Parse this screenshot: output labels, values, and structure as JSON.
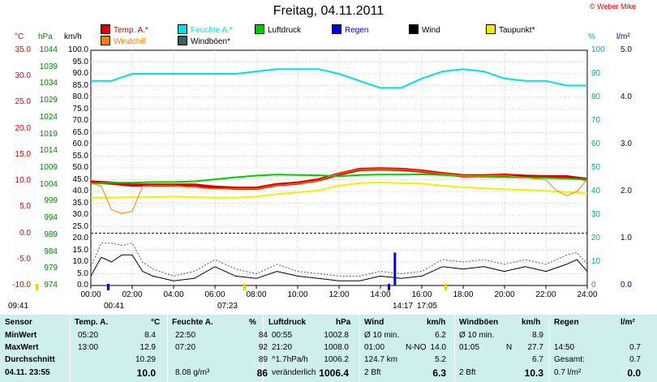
{
  "title": "Freitag, 04.11.2011",
  "credit": "© Weber Mike",
  "colors": {
    "temp": "#e00000",
    "feuchte": "#00e0e0",
    "luftdruck": "#00cc00",
    "regen": "#0000e0",
    "wind": "#000000",
    "taupunkt": "#f0f000",
    "windchill": "#ff8000",
    "windboen": "#406060",
    "table_bg": "#cfeeee"
  },
  "legend": [
    {
      "label": "Temp. A.*",
      "color": "#e00000"
    },
    {
      "label": "Feuchte A.*",
      "color": "#00e0e0"
    },
    {
      "label": "Luftdruck",
      "color": "#00cc00"
    },
    {
      "label": "Regen",
      "color": "#0000e0"
    },
    {
      "label": "Wind",
      "color": "#000000"
    },
    {
      "label": "Taupunkt*",
      "color": "#f0f000"
    },
    {
      "label": "Windchill",
      "color": "#ff8000"
    },
    {
      "label": "Windböen*",
      "color": "#406060"
    }
  ],
  "axis_titles": {
    "temp": "°C",
    "pressure": "hPa",
    "wind": "km/h",
    "humidity": "%",
    "rain": "l/m²"
  },
  "events": [
    {
      "label": "09:41",
      "type": "sunrise"
    },
    {
      "label": "00:41",
      "type": "moon"
    },
    {
      "label": "07:23",
      "type": "sunrise"
    },
    {
      "label": "14:17",
      "type": "moon"
    },
    {
      "label": "17:05",
      "type": "sunset"
    }
  ],
  "chart_data": {
    "type": "line",
    "x_ticks": [
      "00:00",
      "02:00",
      "04:00",
      "06:00",
      "08:00",
      "10:00",
      "12:00",
      "14:00",
      "16:00",
      "18:00",
      "20:00",
      "22:00",
      "24:00"
    ],
    "xlim": [
      0,
      24
    ],
    "axes": {
      "temp": {
        "unit": "°C",
        "ylim": [
          -10,
          35
        ],
        "ticks": [
          "35.0",
          "30.0",
          "25.0",
          "20.0",
          "15.0",
          "10.0",
          "5.0",
          "0.0",
          "-5.0",
          "-10.0"
        ]
      },
      "pressure": {
        "unit": "hPa",
        "ylim": [
          974,
          1044
        ],
        "ticks": [
          "1044",
          "1039",
          "1034",
          "1029",
          "1024",
          "1019",
          "1014",
          "1009",
          "1004",
          "999",
          "994",
          "989",
          "984",
          "979",
          "974"
        ]
      },
      "wind": {
        "unit": "km/h",
        "ylim": [
          0,
          100
        ],
        "ticks": [
          "100.0",
          "95.0",
          "90.0",
          "85.0",
          "80.0",
          "75.0",
          "70.0",
          "65.0",
          "60.0",
          "55.0",
          "50.0",
          "45.0",
          "40.0",
          "35.0",
          "30.0",
          "25.0",
          "20.0",
          "15.0",
          "10.0",
          "5.0",
          "0.0"
        ]
      },
      "humidity": {
        "unit": "%",
        "ylim": [
          0,
          100
        ],
        "ticks": [
          "100",
          "90",
          "80",
          "70",
          "60",
          "50",
          "40",
          "30",
          "20",
          "10",
          "0"
        ]
      },
      "rain": {
        "unit": "l/m²",
        "ylim": [
          0,
          5
        ],
        "ticks": [
          "5.0",
          "4.0",
          "3.0",
          "2.0",
          "1.0",
          "0.0"
        ]
      }
    },
    "series": [
      {
        "name": "Temp. A.*",
        "axis": "temp",
        "color": "#e00000",
        "width": 4,
        "x": [
          0,
          1,
          2,
          3,
          4,
          5,
          6,
          7,
          8,
          9,
          10,
          11,
          12,
          13,
          14,
          15,
          16,
          17,
          18,
          19,
          20,
          21,
          22,
          23,
          24
        ],
        "y": [
          9.8,
          9.6,
          9.2,
          9.2,
          9.2,
          9.2,
          8.8,
          8.6,
          8.6,
          9.3,
          9.6,
          10.2,
          11.3,
          12.2,
          12.3,
          12.2,
          11.9,
          11.4,
          11.0,
          11.0,
          11.1,
          10.9,
          10.8,
          10.8,
          10.3
        ]
      },
      {
        "name": "Feuchte A.*",
        "axis": "humidity",
        "color": "#00e0e0",
        "width": 2,
        "x": [
          0,
          1,
          2,
          3,
          4,
          5,
          6,
          7,
          8,
          9,
          10,
          11,
          12,
          13,
          14,
          15,
          16,
          17,
          18,
          19,
          20,
          21,
          22,
          23,
          24
        ],
        "y": [
          87,
          87,
          90,
          90,
          90,
          90,
          90,
          90,
          91,
          92,
          92,
          92,
          90,
          87,
          84,
          84,
          88,
          91,
          92,
          91,
          88,
          87,
          87,
          85,
          85
        ]
      },
      {
        "name": "Luftdruck",
        "axis": "pressure",
        "color": "#00cc00",
        "width": 2,
        "x": [
          0,
          1,
          2,
          3,
          4,
          5,
          6,
          7,
          8,
          9,
          10,
          11,
          12,
          13,
          14,
          15,
          16,
          17,
          18,
          19,
          20,
          21,
          22,
          23,
          24
        ],
        "y": [
          1004.3,
          1004.6,
          1004.6,
          1004.8,
          1004.8,
          1005.0,
          1005.6,
          1006.2,
          1006.7,
          1007.0,
          1006.9,
          1006.8,
          1006.5,
          1006.9,
          1007.0,
          1007.0,
          1007.1,
          1006.9,
          1006.6,
          1006.4,
          1006.3,
          1006.1,
          1006.0,
          1005.8,
          1005.5
        ]
      },
      {
        "name": "Taupunkt*",
        "axis": "temp",
        "color": "#f0f000",
        "width": 2,
        "x": [
          0,
          1,
          2,
          3,
          4,
          5,
          6,
          7,
          8,
          9,
          10,
          11,
          12,
          13,
          14,
          15,
          16,
          17,
          18,
          19,
          20,
          21,
          22,
          23,
          24
        ],
        "y": [
          6.8,
          6.8,
          6.9,
          6.9,
          7.0,
          6.9,
          6.8,
          6.8,
          7.0,
          7.5,
          7.8,
          8.2,
          9.1,
          9.6,
          9.7,
          9.6,
          9.5,
          9.1,
          8.8,
          8.6,
          8.4,
          8.3,
          8.1,
          7.9,
          7.6
        ]
      },
      {
        "name": "Windchill",
        "axis": "temp",
        "color": "#ff8000",
        "width": 1,
        "x": [
          0,
          0.5,
          1,
          1.5,
          2,
          2.5,
          3,
          4,
          5,
          6,
          7,
          8,
          9,
          10,
          11,
          12,
          13,
          14,
          15,
          16,
          17,
          18,
          19,
          20,
          21,
          22,
          22.5,
          23,
          23.5,
          24
        ],
        "y": [
          9.6,
          9.0,
          4.5,
          3.8,
          4.2,
          9.0,
          9.1,
          9.1,
          8.7,
          8.5,
          8.5,
          8.5,
          9.2,
          9.5,
          10.1,
          11.4,
          12.2,
          12.3,
          12.2,
          11.9,
          11.4,
          11.0,
          11.0,
          11.1,
          10.6,
          10.2,
          8.2,
          7.2,
          8.0,
          10.3
        ]
      },
      {
        "name": "Wind",
        "axis": "wind",
        "color": "#000000",
        "width": 1,
        "x": [
          0,
          0.5,
          1,
          1.5,
          2,
          2.5,
          3,
          4,
          5,
          6,
          7,
          8,
          9,
          10,
          11,
          12,
          13,
          14,
          15,
          16,
          17,
          18,
          19,
          20,
          21,
          22,
          23,
          23.5,
          24
        ],
        "y": [
          4,
          12,
          10,
          13,
          13,
          6,
          4,
          2,
          3,
          8,
          4,
          3,
          6,
          4,
          3,
          2,
          2,
          4,
          3,
          4,
          8,
          7,
          8,
          6,
          8,
          6,
          9,
          11,
          6
        ]
      },
      {
        "name": "Windböen*",
        "axis": "wind",
        "color": "#406060",
        "width": 1,
        "dash": true,
        "x": [
          0,
          0.5,
          1,
          1.5,
          2,
          2.5,
          3,
          4,
          5,
          6,
          7,
          8,
          9,
          10,
          11,
          12,
          13,
          14,
          15,
          16,
          17,
          18,
          19,
          20,
          21,
          22,
          23,
          23.5,
          24
        ],
        "y": [
          8,
          18,
          18,
          17,
          18,
          10,
          7,
          4,
          6,
          11,
          7,
          5,
          9,
          6,
          5,
          4,
          4,
          6,
          5,
          6,
          11,
          10,
          11,
          9,
          11,
          9,
          13,
          14,
          9
        ]
      },
      {
        "name": "Regen",
        "axis": "rain",
        "color": "#0000e0",
        "width": 3,
        "type": "bar",
        "x": [
          14.7
        ],
        "y": [
          0.7
        ]
      }
    ]
  },
  "table": {
    "headers": {
      "sensor": "Sensor",
      "temp": "Temp. A.",
      "temp_unit": "°C",
      "feuchte": "Feuchte A.",
      "feuchte_unit": "%",
      "luft": "Luftdruck",
      "luft_unit": "hPa",
      "wind": "Wind",
      "wind_unit": "km/h",
      "boen": "Windböen",
      "boen_unit": "km/h",
      "regen": "Regen",
      "regen_unit": "l/m²"
    },
    "rows": [
      {
        "label": "MinWert",
        "temp_t": "05:20",
        "temp_v": "8.4",
        "feu_t": "22:50",
        "feu_v": "84",
        "luft_t": "00:55",
        "luft_v": "1002.8",
        "wind_t": "Ø 10 min.",
        "wind_v": "6.2",
        "boen_t": "Ø 10 min.",
        "boen_v": "8.9",
        "regen_t": "",
        "regen_v": ""
      },
      {
        "label": "MaxWert",
        "temp_t": "13:00",
        "temp_v": "12.9",
        "feu_t": "07:20",
        "feu_v": "92",
        "luft_t": "21:20",
        "luft_v": "1008.0",
        "wind_t": "01:00",
        "wind_dir": "N-NO",
        "wind_v": "14.0",
        "boen_t": "01:05",
        "boen_dir": "N",
        "boen_v": "27.7",
        "regen_t": "14:50",
        "regen_v": "0.7"
      },
      {
        "label": "Durchschnitt",
        "temp_t": "",
        "temp_v": "10.29",
        "feu_t": "",
        "feu_v": "89",
        "luft_t": "^1.7hPa/h",
        "luft_v": "1006.2",
        "wind_t": "124.7 km",
        "wind_v": "5.2",
        "boen_t": "",
        "boen_v": "6.7",
        "regen_t": "Gesamt:",
        "regen_v": "0.7"
      },
      {
        "label": "04.11. 23:55",
        "temp_t": "",
        "temp_v": "10.0",
        "feu_t": "8.08 g/m³",
        "feu_v": "86",
        "luft_t": "veränderlich",
        "luft_v": "1006.4",
        "wind_t": "2 Bft",
        "wind_v": "6.3",
        "boen_t": "2 Bft",
        "boen_v": "10.3",
        "regen_t": "0.7 l/m²",
        "regen_v": "0.0"
      }
    ]
  }
}
